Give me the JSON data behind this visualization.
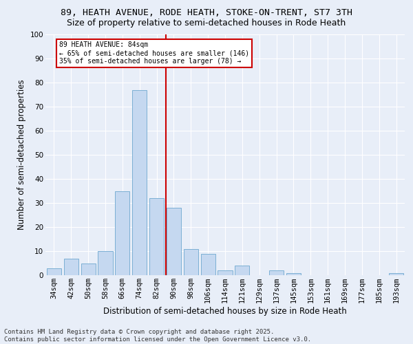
{
  "title1": "89, HEATH AVENUE, RODE HEATH, STOKE-ON-TRENT, ST7 3TH",
  "title2": "Size of property relative to semi-detached houses in Rode Heath",
  "xlabel": "Distribution of semi-detached houses by size in Rode Heath",
  "ylabel": "Number of semi-detached properties",
  "categories": [
    "34sqm",
    "42sqm",
    "50sqm",
    "58sqm",
    "66sqm",
    "74sqm",
    "82sqm",
    "90sqm",
    "98sqm",
    "106sqm",
    "114sqm",
    "121sqm",
    "129sqm",
    "137sqm",
    "145sqm",
    "153sqm",
    "161sqm",
    "169sqm",
    "177sqm",
    "185sqm",
    "193sqm"
  ],
  "values": [
    3,
    7,
    5,
    10,
    35,
    77,
    32,
    28,
    11,
    9,
    2,
    4,
    0,
    2,
    1,
    0,
    0,
    0,
    0,
    0,
    1
  ],
  "bar_color": "#c5d8f0",
  "bar_edge_color": "#7bafd4",
  "vline_x": 6.55,
  "vline_color": "#cc0000",
  "annotation_text": "89 HEATH AVENUE: 84sqm\n← 65% of semi-detached houses are smaller (146)\n35% of semi-detached houses are larger (78) →",
  "annotation_box_color": "#ffffff",
  "annotation_box_edge": "#cc0000",
  "ylim": [
    0,
    100
  ],
  "yticks": [
    0,
    10,
    20,
    30,
    40,
    50,
    60,
    70,
    80,
    90,
    100
  ],
  "footnote": "Contains HM Land Registry data © Crown copyright and database right 2025.\nContains public sector information licensed under the Open Government Licence v3.0.",
  "bg_color": "#e8eef8",
  "plot_bg_color": "#e8eef8",
  "grid_color": "#ffffff",
  "title_fontsize": 9.5,
  "subtitle_fontsize": 9,
  "axis_label_fontsize": 8.5,
  "tick_fontsize": 7.5,
  "footnote_fontsize": 6.5
}
